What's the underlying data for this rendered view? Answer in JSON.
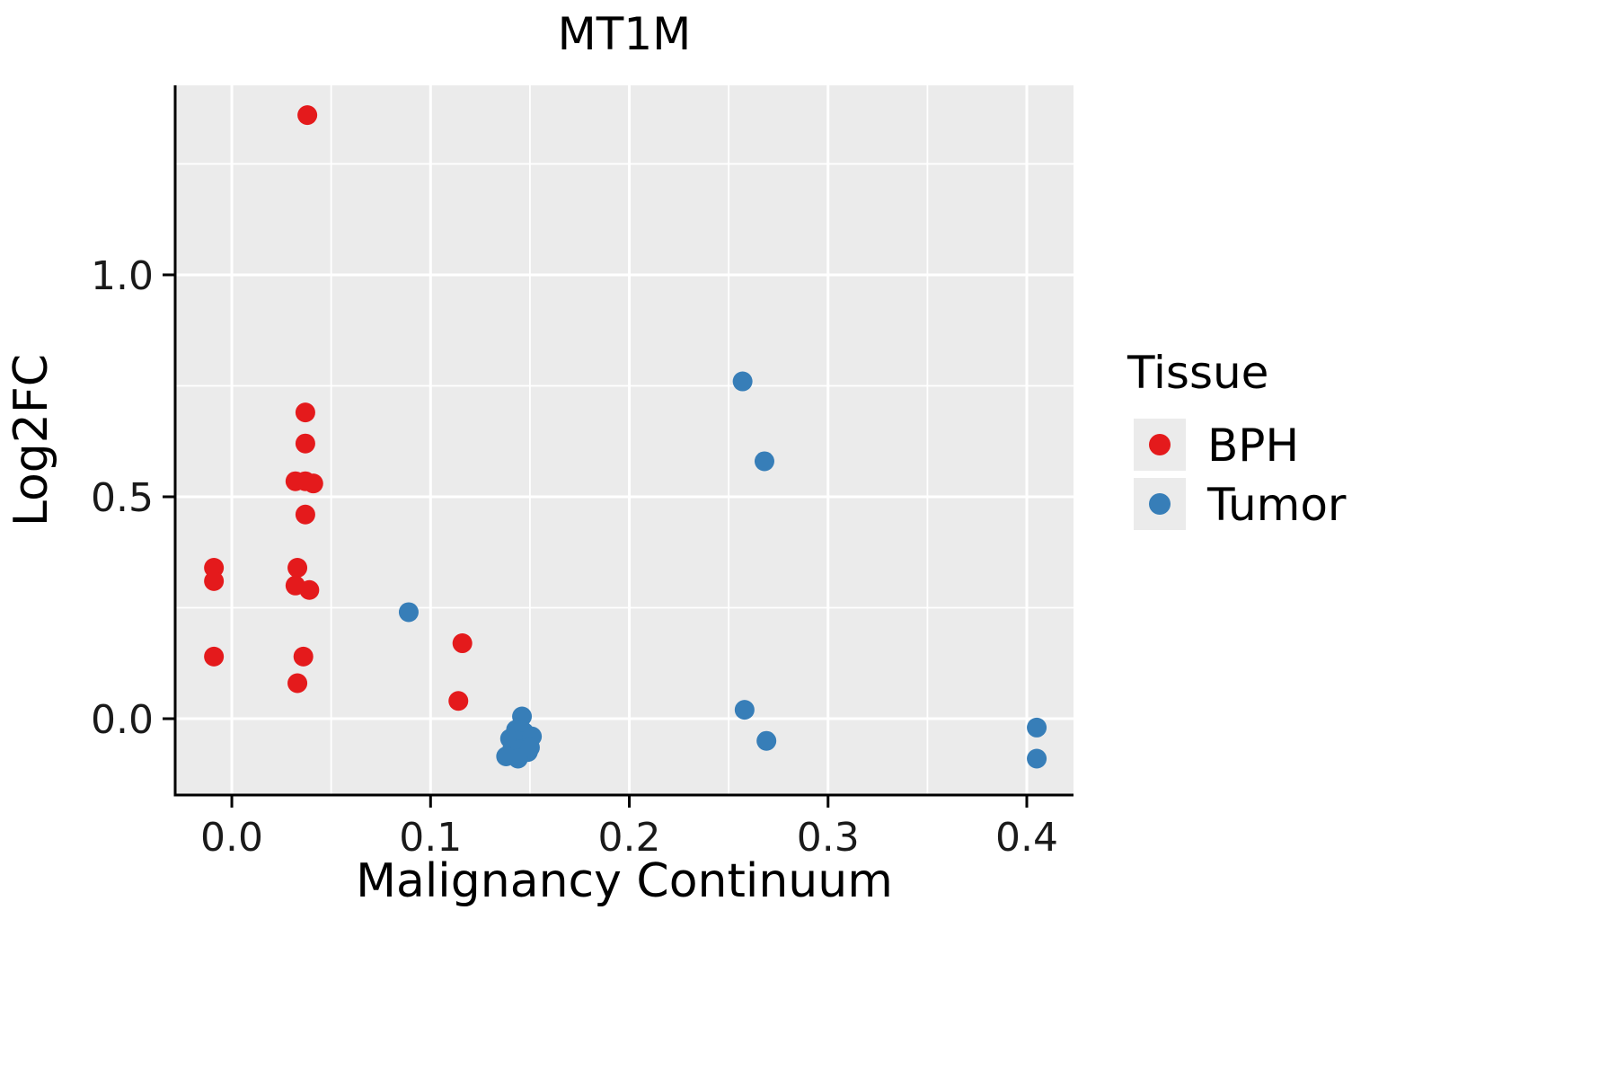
{
  "chart_data": {
    "type": "scatter",
    "title": "MT1M",
    "xlabel": "Malignancy Continuum",
    "ylabel": "Log2FC",
    "x_ticks": [
      "0.0",
      "0.1",
      "0.2",
      "0.3",
      "0.4"
    ],
    "x_tick_values": [
      0.0,
      0.1,
      0.2,
      0.3,
      0.4
    ],
    "y_ticks": [
      "0.0",
      "0.5",
      "1.0"
    ],
    "y_tick_values": [
      0.0,
      0.5,
      1.0
    ],
    "x_minor": [
      0.05,
      0.15,
      0.25,
      0.35
    ],
    "y_minor": [
      0.25,
      0.75,
      1.25
    ],
    "xlim": [
      -0.0285,
      0.4235
    ],
    "ylim": [
      -0.172,
      1.427
    ],
    "panel_bg": "#EBEBEB",
    "grid_color": "#FFFFFF",
    "axis_color": "#000000",
    "legend_title": "Tissue",
    "legend_position": "right",
    "legend_key_bg": "#EBEBEB",
    "series": [
      {
        "name": "BPH",
        "color": "#E41A1C",
        "points": [
          [
            -0.009,
            0.34
          ],
          [
            -0.009,
            0.31
          ],
          [
            -0.009,
            0.14
          ],
          [
            0.038,
            1.36
          ],
          [
            0.037,
            0.69
          ],
          [
            0.037,
            0.62
          ],
          [
            0.032,
            0.535
          ],
          [
            0.037,
            0.535
          ],
          [
            0.041,
            0.53
          ],
          [
            0.037,
            0.46
          ],
          [
            0.033,
            0.34
          ],
          [
            0.032,
            0.3
          ],
          [
            0.039,
            0.29
          ],
          [
            0.036,
            0.14
          ],
          [
            0.033,
            0.08
          ],
          [
            0.116,
            0.17
          ],
          [
            0.114,
            0.04
          ]
        ]
      },
      {
        "name": "Tumor",
        "color": "#377EB8",
        "points": [
          [
            0.089,
            0.24
          ],
          [
            0.257,
            0.76
          ],
          [
            0.268,
            0.58
          ],
          [
            0.258,
            0.02
          ],
          [
            0.269,
            -0.05
          ],
          [
            0.405,
            -0.02
          ],
          [
            0.405,
            -0.09
          ],
          [
            0.146,
            0.005
          ],
          [
            0.143,
            -0.025
          ],
          [
            0.147,
            -0.03
          ],
          [
            0.14,
            -0.045
          ],
          [
            0.144,
            -0.05
          ],
          [
            0.148,
            -0.05
          ],
          [
            0.151,
            -0.04
          ],
          [
            0.141,
            -0.07
          ],
          [
            0.145,
            -0.07
          ],
          [
            0.149,
            -0.075
          ],
          [
            0.138,
            -0.085
          ],
          [
            0.144,
            -0.09
          ],
          [
            0.15,
            -0.065
          ]
        ]
      }
    ]
  }
}
